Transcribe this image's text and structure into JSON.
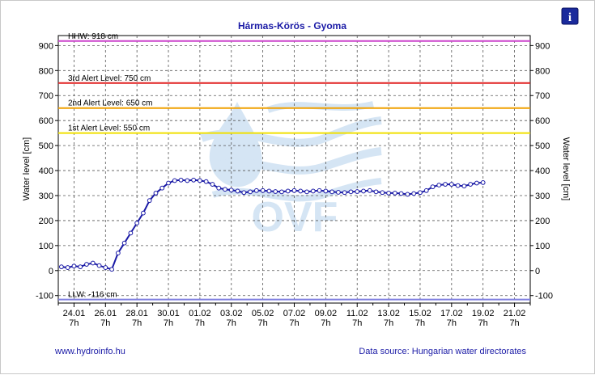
{
  "chart_data": {
    "type": "line",
    "title": "Hármas-Körös - Gyoma",
    "ylabel_left": "Water level [cm]",
    "ylabel_right": "Water level [cm]",
    "ylim": [
      -130,
      940
    ],
    "yticks": [
      -100,
      0,
      100,
      200,
      300,
      400,
      500,
      600,
      700,
      800,
      900
    ],
    "xlim": [
      0,
      30
    ],
    "xticks": [
      {
        "x": 1,
        "date": "24.01",
        "hour": "7h"
      },
      {
        "x": 3,
        "date": "26.01",
        "hour": "7h"
      },
      {
        "x": 5,
        "date": "28.01",
        "hour": "7h"
      },
      {
        "x": 7,
        "date": "30.01",
        "hour": "7h"
      },
      {
        "x": 9,
        "date": "01.02",
        "hour": "7h"
      },
      {
        "x": 11,
        "date": "03.02",
        "hour": "7h"
      },
      {
        "x": 13,
        "date": "05.02",
        "hour": "7h"
      },
      {
        "x": 15,
        "date": "07.02",
        "hour": "7h"
      },
      {
        "x": 17,
        "date": "09.02",
        "hour": "7h"
      },
      {
        "x": 19,
        "date": "11.02",
        "hour": "7h"
      },
      {
        "x": 21,
        "date": "13.02",
        "hour": "7h"
      },
      {
        "x": 23,
        "date": "15.02",
        "hour": "7h"
      },
      {
        "x": 25,
        "date": "17.02",
        "hour": "7h"
      },
      {
        "x": 27,
        "date": "19.02",
        "hour": "7h"
      },
      {
        "x": 29,
        "date": "21.02",
        "hour": "7h"
      }
    ],
    "grid": true,
    "levels": [
      {
        "label": "HHW: 918 cm",
        "value": 918,
        "color": "#cc44cc"
      },
      {
        "label": "3rd Alert Level: 750 cm",
        "value": 750,
        "color": "#e02020"
      },
      {
        "label": "2nd Alert Level: 650 cm",
        "value": 650,
        "color": "#f0a000"
      },
      {
        "label": "1st Alert Level: 550 cm",
        "value": 550,
        "color": "#f0e000"
      },
      {
        "label": "LLW: -116 cm",
        "value": -116,
        "color": "#8080e0"
      }
    ],
    "series": [
      {
        "color": "#1a1aa6",
        "marker": "circle",
        "points": [
          [
            0.2,
            15
          ],
          [
            0.6,
            12
          ],
          [
            1.0,
            18
          ],
          [
            1.4,
            15
          ],
          [
            1.8,
            25
          ],
          [
            2.2,
            30
          ],
          [
            2.6,
            20
          ],
          [
            3.0,
            12
          ],
          [
            3.4,
            5
          ],
          [
            3.8,
            70
          ],
          [
            4.2,
            110
          ],
          [
            4.6,
            150
          ],
          [
            5.0,
            190
          ],
          [
            5.4,
            230
          ],
          [
            5.8,
            280
          ],
          [
            6.2,
            310
          ],
          [
            6.6,
            330
          ],
          [
            7.0,
            350
          ],
          [
            7.4,
            360
          ],
          [
            7.8,
            362
          ],
          [
            8.2,
            360
          ],
          [
            8.6,
            362
          ],
          [
            9.0,
            360
          ],
          [
            9.4,
            356
          ],
          [
            9.8,
            345
          ],
          [
            10.2,
            330
          ],
          [
            10.6,
            325
          ],
          [
            11.0,
            322
          ],
          [
            11.4,
            318
          ],
          [
            11.8,
            312
          ],
          [
            12.2,
            315
          ],
          [
            12.6,
            320
          ],
          [
            13.0,
            320
          ],
          [
            13.4,
            318
          ],
          [
            13.8,
            316
          ],
          [
            14.2,
            315
          ],
          [
            14.6,
            318
          ],
          [
            15.0,
            320
          ],
          [
            15.4,
            318
          ],
          [
            15.8,
            315
          ],
          [
            16.2,
            318
          ],
          [
            16.6,
            320
          ],
          [
            17.0,
            318
          ],
          [
            17.4,
            315
          ],
          [
            17.8,
            313
          ],
          [
            18.2,
            312
          ],
          [
            18.6,
            315
          ],
          [
            19.0,
            316
          ],
          [
            19.4,
            318
          ],
          [
            19.8,
            320
          ],
          [
            20.2,
            315
          ],
          [
            20.6,
            312
          ],
          [
            21.0,
            310
          ],
          [
            21.4,
            310
          ],
          [
            21.8,
            308
          ],
          [
            22.2,
            305
          ],
          [
            22.6,
            308
          ],
          [
            23.0,
            312
          ],
          [
            23.4,
            320
          ],
          [
            23.8,
            335
          ],
          [
            24.2,
            342
          ],
          [
            24.6,
            345
          ],
          [
            25.0,
            345
          ],
          [
            25.4,
            340
          ],
          [
            25.8,
            338
          ],
          [
            26.2,
            345
          ],
          [
            26.6,
            350
          ],
          [
            27.0,
            352
          ]
        ]
      }
    ]
  },
  "footer": {
    "link": "www.hydroinfo.hu",
    "source": "Data source: Hungarian water directorates"
  },
  "watermark": {
    "text": "OVF"
  },
  "info_button": {
    "icon": "info-icon",
    "glyph": "i"
  }
}
